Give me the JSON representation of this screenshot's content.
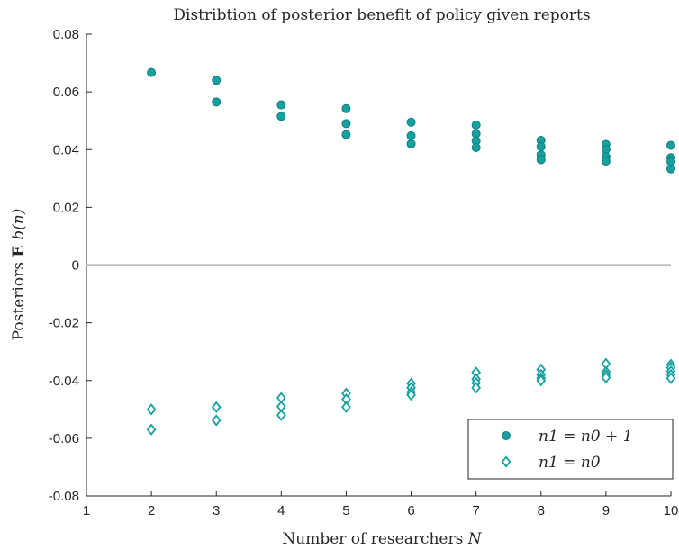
{
  "chart_data": {
    "type": "scatter",
    "title": "Distribtion of posterior benefit of policy given reports",
    "xlabel": "Number of researchers N",
    "ylabel": "Posteriors E b(n)",
    "xlim": [
      1,
      10
    ],
    "ylim": [
      -0.08,
      0.08
    ],
    "x_ticks": [
      "1",
      "2",
      "3",
      "4",
      "5",
      "6",
      "7",
      "8",
      "9",
      "10"
    ],
    "y_ticks": [
      "-0.08",
      "-0.06",
      "-0.04",
      "-0.02",
      "0",
      "0.02",
      "0.04",
      "0.06",
      "0.08"
    ],
    "x_tick_values": [
      1,
      2,
      3,
      4,
      5,
      6,
      7,
      8,
      9,
      10
    ],
    "y_tick_values": [
      -0.08,
      -0.06,
      -0.04,
      -0.02,
      0,
      0.02,
      0.04,
      0.06,
      0.08
    ],
    "reference_line_y": 0,
    "grid": false,
    "legend_position": "bottom-right",
    "colors": {
      "series": "#16a0a0",
      "reference": "#bfbfbf"
    },
    "series": [
      {
        "name": "n1 = n0 + 1",
        "marker": "filled-circle",
        "points": [
          [
            2,
            0.0667
          ],
          [
            3,
            0.064
          ],
          [
            3,
            0.0565
          ],
          [
            4,
            0.0555
          ],
          [
            4,
            0.0515
          ],
          [
            5,
            0.0542
          ],
          [
            5,
            0.049
          ],
          [
            5,
            0.0452
          ],
          [
            6,
            0.0495
          ],
          [
            6,
            0.0448
          ],
          [
            6,
            0.042
          ],
          [
            7,
            0.0485
          ],
          [
            7,
            0.0455
          ],
          [
            7,
            0.043
          ],
          [
            7,
            0.0407
          ],
          [
            8,
            0.0432
          ],
          [
            8,
            0.041
          ],
          [
            8,
            0.0382
          ],
          [
            8,
            0.0365
          ],
          [
            9,
            0.0418
          ],
          [
            9,
            0.04
          ],
          [
            9,
            0.0375
          ],
          [
            9,
            0.036
          ],
          [
            10,
            0.0415
          ],
          [
            10,
            0.0372
          ],
          [
            10,
            0.0358
          ],
          [
            10,
            0.0333
          ]
        ]
      },
      {
        "name": "n1 = n0",
        "marker": "open-diamond",
        "points": [
          [
            2,
            -0.05
          ],
          [
            2,
            -0.057
          ],
          [
            3,
            -0.0492
          ],
          [
            3,
            -0.0538
          ],
          [
            4,
            -0.046
          ],
          [
            4,
            -0.049
          ],
          [
            4,
            -0.052
          ],
          [
            5,
            -0.0445
          ],
          [
            5,
            -0.0465
          ],
          [
            5,
            -0.0492
          ],
          [
            6,
            -0.041
          ],
          [
            6,
            -0.0425
          ],
          [
            6,
            -0.044
          ],
          [
            6,
            -0.045
          ],
          [
            7,
            -0.0372
          ],
          [
            7,
            -0.0395
          ],
          [
            7,
            -0.0408
          ],
          [
            7,
            -0.0425
          ],
          [
            8,
            -0.0362
          ],
          [
            8,
            -0.038
          ],
          [
            8,
            -0.0392
          ],
          [
            8,
            -0.04
          ],
          [
            9,
            -0.0342
          ],
          [
            9,
            -0.037
          ],
          [
            9,
            -0.038
          ],
          [
            9,
            -0.039
          ],
          [
            10,
            -0.0345
          ],
          [
            10,
            -0.0355
          ],
          [
            10,
            -0.0368
          ],
          [
            10,
            -0.038
          ],
          [
            10,
            -0.0392
          ]
        ]
      }
    ]
  }
}
